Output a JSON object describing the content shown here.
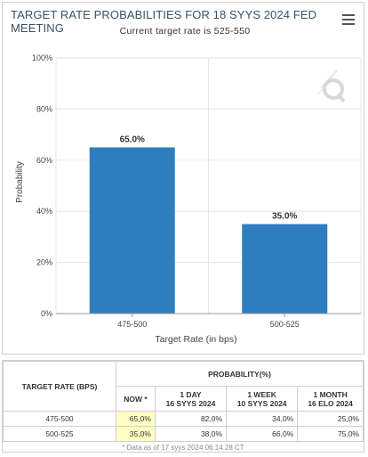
{
  "header": {
    "title": "TARGET RATE PROBABILITIES FOR 18 SYYS 2024 FED MEETING",
    "subtitle": "Current target rate is 525-550"
  },
  "chart_data": {
    "type": "bar",
    "categories": [
      "475-500",
      "500-525"
    ],
    "values": [
      65.0,
      35.0
    ],
    "data_labels": [
      "65.0%",
      "35.0%"
    ],
    "xlabel": "Target Rate (in bps)",
    "ylabel": "Probability",
    "ylim": [
      0,
      100
    ],
    "yticks": [
      "0%",
      "20%",
      "40%",
      "60%",
      "80%",
      "100%"
    ],
    "bar_color": "#2e7ebf",
    "grid": true
  },
  "table": {
    "col_rate": "TARGET RATE (BPS)",
    "col_prob": "PROBABILITY(%)",
    "sub_headers": [
      {
        "line1": "NOW *",
        "line2": ""
      },
      {
        "line1": "1 DAY",
        "line2": "16 SYYS 2024"
      },
      {
        "line1": "1 WEEK",
        "line2": "10 SYYS 2024"
      },
      {
        "line1": "1 MONTH",
        "line2": "16 ELO 2024"
      }
    ],
    "rows": [
      {
        "rate": "475-500",
        "values": [
          "65,0%",
          "82,0%",
          "34,0%",
          "25,0%"
        ]
      },
      {
        "rate": "500-525",
        "values": [
          "35,0%",
          "38,0%",
          "66,0%",
          "75,0%"
        ]
      }
    ],
    "note": "* Data as of 17 syys 2024 06.14.28 CT"
  }
}
